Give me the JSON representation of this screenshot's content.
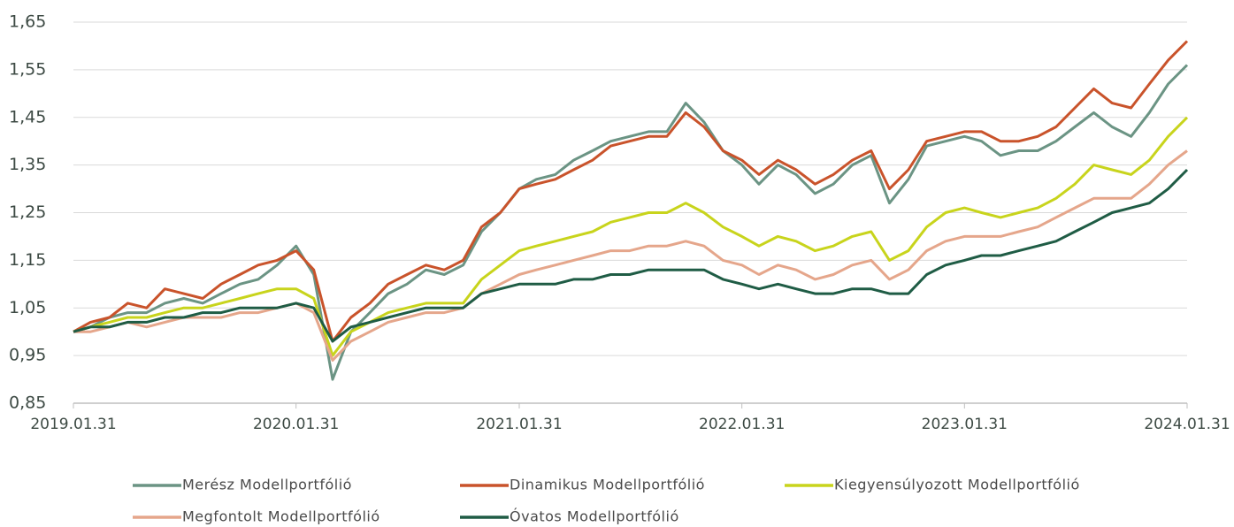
{
  "chart_data": {
    "type": "line",
    "x": [
      "2019.01.31",
      "2019.02.28",
      "2019.03.31",
      "2019.04.30",
      "2019.05.31",
      "2019.06.30",
      "2019.07.31",
      "2019.08.31",
      "2019.09.30",
      "2019.10.31",
      "2019.11.30",
      "2019.12.31",
      "2020.01.31",
      "2020.02.29",
      "2020.03.31",
      "2020.04.30",
      "2020.05.31",
      "2020.06.30",
      "2020.07.31",
      "2020.08.31",
      "2020.09.30",
      "2020.10.31",
      "2020.11.30",
      "2020.12.31",
      "2021.01.31",
      "2021.02.28",
      "2021.03.31",
      "2021.04.30",
      "2021.05.31",
      "2021.06.30",
      "2021.07.31",
      "2021.08.31",
      "2021.09.30",
      "2021.10.31",
      "2021.11.30",
      "2021.12.31",
      "2022.01.31",
      "2022.02.28",
      "2022.03.31",
      "2022.04.30",
      "2022.05.31",
      "2022.06.30",
      "2022.07.31",
      "2022.08.31",
      "2022.09.30",
      "2022.10.31",
      "2022.11.30",
      "2022.12.31",
      "2023.01.31",
      "2023.02.28",
      "2023.03.31",
      "2023.04.30",
      "2023.05.31",
      "2023.06.30",
      "2023.07.31",
      "2023.08.31",
      "2023.09.30",
      "2023.10.31",
      "2023.11.30",
      "2023.12.31",
      "2024.01.31"
    ],
    "series": [
      {
        "name": "Merész Modellportfólió",
        "color": "#6b9484",
        "values": [
          1.0,
          1.01,
          1.03,
          1.04,
          1.04,
          1.06,
          1.07,
          1.06,
          1.08,
          1.1,
          1.11,
          1.14,
          1.18,
          1.12,
          0.9,
          1.0,
          1.04,
          1.08,
          1.1,
          1.13,
          1.12,
          1.14,
          1.21,
          1.25,
          1.3,
          1.32,
          1.33,
          1.36,
          1.38,
          1.4,
          1.41,
          1.42,
          1.42,
          1.48,
          1.44,
          1.38,
          1.35,
          1.31,
          1.35,
          1.33,
          1.29,
          1.31,
          1.35,
          1.37,
          1.27,
          1.32,
          1.39,
          1.4,
          1.41,
          1.4,
          1.37,
          1.38,
          1.38,
          1.4,
          1.43,
          1.46,
          1.43,
          1.41,
          1.46,
          1.52,
          1.56
        ]
      },
      {
        "name": "Dinamikus Modellportfólió",
        "color": "#c9532b",
        "values": [
          1.0,
          1.02,
          1.03,
          1.06,
          1.05,
          1.09,
          1.08,
          1.07,
          1.1,
          1.12,
          1.14,
          1.15,
          1.17,
          1.13,
          0.98,
          1.03,
          1.06,
          1.1,
          1.12,
          1.14,
          1.13,
          1.15,
          1.22,
          1.25,
          1.3,
          1.31,
          1.32,
          1.34,
          1.36,
          1.39,
          1.4,
          1.41,
          1.41,
          1.46,
          1.43,
          1.38,
          1.36,
          1.33,
          1.36,
          1.34,
          1.31,
          1.33,
          1.36,
          1.38,
          1.3,
          1.34,
          1.4,
          1.41,
          1.42,
          1.42,
          1.4,
          1.4,
          1.41,
          1.43,
          1.47,
          1.51,
          1.48,
          1.47,
          1.52,
          1.57,
          1.61
        ]
      },
      {
        "name": "Kiegyensúlyozott Modellportfólió",
        "color": "#c8d41c",
        "values": [
          1.0,
          1.01,
          1.02,
          1.03,
          1.03,
          1.04,
          1.05,
          1.05,
          1.06,
          1.07,
          1.08,
          1.09,
          1.09,
          1.07,
          0.95,
          1.0,
          1.02,
          1.04,
          1.05,
          1.06,
          1.06,
          1.06,
          1.11,
          1.14,
          1.17,
          1.18,
          1.19,
          1.2,
          1.21,
          1.23,
          1.24,
          1.25,
          1.25,
          1.27,
          1.25,
          1.22,
          1.2,
          1.18,
          1.2,
          1.19,
          1.17,
          1.18,
          1.2,
          1.21,
          1.15,
          1.17,
          1.22,
          1.25,
          1.26,
          1.25,
          1.24,
          1.25,
          1.26,
          1.28,
          1.31,
          1.35,
          1.34,
          1.33,
          1.36,
          1.41,
          1.45
        ]
      },
      {
        "name": "Megfontolt Modellportfólió",
        "color": "#e5a68b",
        "values": [
          1.0,
          1.0,
          1.01,
          1.02,
          1.01,
          1.02,
          1.03,
          1.03,
          1.03,
          1.04,
          1.04,
          1.05,
          1.06,
          1.04,
          0.94,
          0.98,
          1.0,
          1.02,
          1.03,
          1.04,
          1.04,
          1.05,
          1.08,
          1.1,
          1.12,
          1.13,
          1.14,
          1.15,
          1.16,
          1.17,
          1.17,
          1.18,
          1.18,
          1.19,
          1.18,
          1.15,
          1.14,
          1.12,
          1.14,
          1.13,
          1.11,
          1.12,
          1.14,
          1.15,
          1.11,
          1.13,
          1.17,
          1.19,
          1.2,
          1.2,
          1.2,
          1.21,
          1.22,
          1.24,
          1.26,
          1.28,
          1.28,
          1.28,
          1.31,
          1.35,
          1.38
        ]
      },
      {
        "name": "Óvatos Modellportfólió",
        "color": "#1f5c45",
        "values": [
          1.0,
          1.01,
          1.01,
          1.02,
          1.02,
          1.03,
          1.03,
          1.04,
          1.04,
          1.05,
          1.05,
          1.05,
          1.06,
          1.05,
          0.98,
          1.01,
          1.02,
          1.03,
          1.04,
          1.05,
          1.05,
          1.05,
          1.08,
          1.09,
          1.1,
          1.1,
          1.1,
          1.11,
          1.11,
          1.12,
          1.12,
          1.13,
          1.13,
          1.13,
          1.13,
          1.11,
          1.1,
          1.09,
          1.1,
          1.09,
          1.08,
          1.08,
          1.09,
          1.09,
          1.08,
          1.08,
          1.12,
          1.14,
          1.15,
          1.16,
          1.16,
          1.17,
          1.18,
          1.19,
          1.21,
          1.23,
          1.25,
          1.26,
          1.27,
          1.3,
          1.34
        ]
      }
    ],
    "xlim": [
      "2019.01.31",
      "2024.01.31"
    ],
    "xticks": [
      "2019.01.31",
      "2020.01.31",
      "2021.01.31",
      "2022.01.31",
      "2023.01.31",
      "2024.01.31"
    ],
    "ylim": [
      0.85,
      1.65
    ],
    "yticks": [
      {
        "value": 0.85,
        "label": "0,85"
      },
      {
        "value": 0.95,
        "label": "0,95"
      },
      {
        "value": 1.05,
        "label": "1,05"
      },
      {
        "value": 1.15,
        "label": "1,15"
      },
      {
        "value": 1.25,
        "label": "1,25"
      },
      {
        "value": 1.35,
        "label": "1,35"
      },
      {
        "value": 1.45,
        "label": "1,45"
      },
      {
        "value": 1.55,
        "label": "1,55"
      },
      {
        "value": 1.65,
        "label": "1,65"
      }
    ],
    "grid": true,
    "legend": "bottom"
  }
}
